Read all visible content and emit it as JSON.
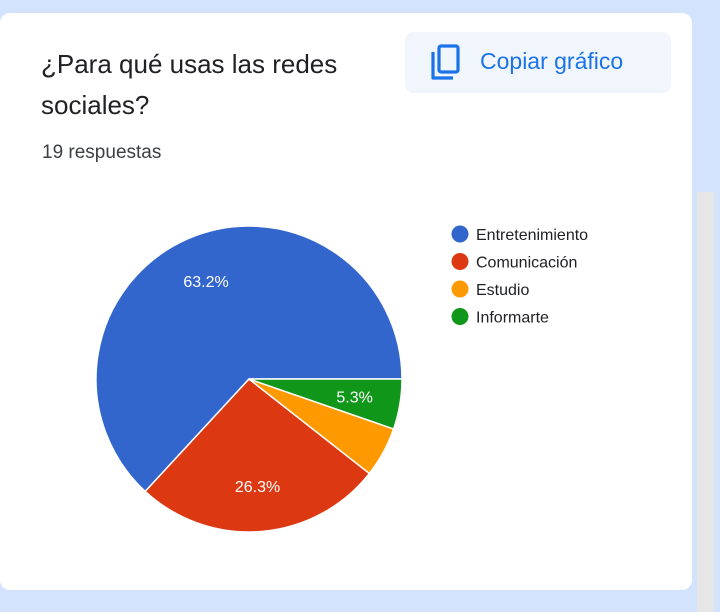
{
  "question": "¿Para qué usas las redes sociales?",
  "responses": "19 respuestas",
  "copy_button": {
    "label": "Copiar gráfico",
    "icon": "copy-icon"
  },
  "chart_data": {
    "type": "pie",
    "categories": [
      "Entretenimiento",
      "Comunicación",
      "Estudio",
      "Informarte"
    ],
    "values": [
      63.2,
      26.3,
      5.3,
      5.3
    ],
    "labels": [
      "63.2%",
      "26.3%",
      "",
      "5.3%"
    ],
    "colors": [
      "#3366cc",
      "#dc3912",
      "#ff9900",
      "#109618"
    ],
    "legend_position": "right",
    "start": "3 o'clock",
    "direction": "counterclockwise"
  }
}
